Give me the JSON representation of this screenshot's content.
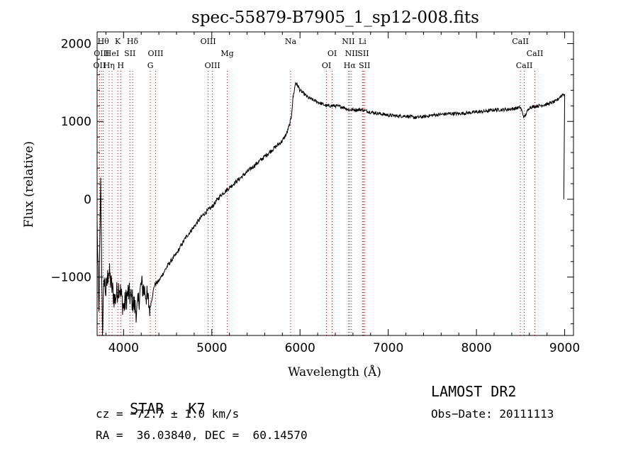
{
  "chart_data": {
    "type": "line",
    "title": "spec-55879-B7905_1_sp12-008.fits",
    "xlabel": "Wavelength (Å)",
    "ylabel": "Flux (relative)",
    "xlim": [
      3700,
      9100
    ],
    "ylim": [
      -1750,
      2150
    ],
    "x_ticks": [
      4000,
      5000,
      6000,
      7000,
      8000,
      9000
    ],
    "y_ticks": [
      -1000,
      0,
      1000,
      2000
    ],
    "y_tick_labels": [
      "−1000",
      "0",
      "1000",
      "2000"
    ],
    "grid": false,
    "line_color": "#000000",
    "marker_color": "#cc0000",
    "series": [
      {
        "x": [
          3700,
          3720,
          3740,
          3760,
          3780,
          3800,
          3830,
          3860,
          3900,
          3950,
          4000,
          4050,
          4100,
          4150,
          4200,
          4250,
          4300,
          4350,
          4400,
          4500,
          4600,
          4700,
          4800,
          4900,
          5000,
          5100,
          5200,
          5300,
          5400,
          5500,
          5600,
          5700,
          5800,
          5850,
          5880,
          5900,
          5920,
          5950,
          5980,
          6000,
          6050,
          6100,
          6200,
          6300,
          6400,
          6500,
          6550,
          6600,
          6700,
          6800,
          6900,
          7000,
          7100,
          7200,
          7300,
          7400,
          7500,
          7600,
          7700,
          7800,
          7900,
          8000,
          8100,
          8200,
          8300,
          8400,
          8500,
          8540,
          8600,
          8700,
          8800,
          8900,
          8950,
          8980,
          9000
        ],
        "y": [
          -300,
          -1500,
          200,
          -1700,
          -1000,
          -1200,
          -900,
          -1100,
          -1300,
          -1100,
          -1400,
          -1200,
          -1300,
          -1450,
          -1100,
          -1200,
          -1400,
          -1100,
          -1050,
          -850,
          -700,
          -500,
          -350,
          -200,
          -100,
          50,
          150,
          250,
          350,
          450,
          550,
          650,
          750,
          850,
          950,
          1050,
          1300,
          1500,
          1450,
          1400,
          1350,
          1300,
          1250,
          1200,
          1200,
          1180,
          1150,
          1150,
          1150,
          1120,
          1100,
          1080,
          1070,
          1070,
          1050,
          1060,
          1080,
          1090,
          1100,
          1100,
          1110,
          1120,
          1130,
          1150,
          1150,
          1160,
          1180,
          1050,
          1180,
          1200,
          1220,
          1260,
          1320,
          1350,
          1350
        ]
      }
    ],
    "line_markers": [
      {
        "x": 3727,
        "label": "OII",
        "row": 2
      },
      {
        "x": 3750,
        "label": "OIII",
        "row": 1
      },
      {
        "x": 3770,
        "label": "Hθ",
        "row": 0
      },
      {
        "x": 3835,
        "label": "Hη",
        "row": 2
      },
      {
        "x": 3869,
        "label": "HeI",
        "row": 1
      },
      {
        "x": 3934,
        "label": "K",
        "row": 0
      },
      {
        "x": 3968,
        "label": "H",
        "row": 2
      },
      {
        "x": 4072,
        "label": "SII",
        "row": 1
      },
      {
        "x": 4102,
        "label": "Hδ",
        "row": 0
      },
      {
        "x": 4304,
        "label": "G",
        "row": 2
      },
      {
        "x": 4363,
        "label": "OIII",
        "row": 1
      },
      {
        "x": 4959,
        "label": "OIII",
        "row": 0
      },
      {
        "x": 5007,
        "label": "OIII",
        "row": 2
      },
      {
        "x": 5175,
        "label": "Mg",
        "row": 1
      },
      {
        "x": 5893,
        "label": "Na",
        "row": 0
      },
      {
        "x": 6300,
        "label": "OI",
        "row": 2
      },
      {
        "x": 6364,
        "label": "OI",
        "row": 1
      },
      {
        "x": 6548,
        "label": "NII",
        "row": 0
      },
      {
        "x": 6563,
        "label": "Hα",
        "row": 2
      },
      {
        "x": 6583,
        "label": "NII",
        "row": 1
      },
      {
        "x": 6708,
        "label": "Li",
        "row": 0
      },
      {
        "x": 6717,
        "label": "SII",
        "row": 1
      },
      {
        "x": 6731,
        "label": "SII",
        "row": 2
      },
      {
        "x": 8498,
        "label": "CaII",
        "row": 0
      },
      {
        "x": 8542,
        "label": "CaII",
        "row": 2
      },
      {
        "x": 8662,
        "label": "CaII",
        "row": 1
      }
    ]
  },
  "info": {
    "class": "STAR",
    "subclass": "K7",
    "survey": "LAMOST DR2",
    "cz": "cz = −72.7 ± 1.0 km/s",
    "obs_date": "Obs−Date: 20111113",
    "radec": "RA =  36.03840, DEC =  60.14570"
  }
}
